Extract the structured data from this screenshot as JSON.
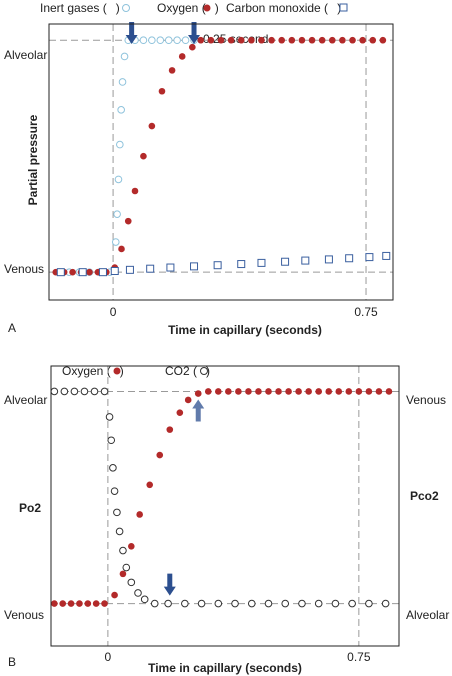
{
  "chart_data": [
    {
      "panel": "A",
      "type": "scatter",
      "xlabel": "Time in capillary (seconds)",
      "ylabel": "Partial pressure",
      "x_ticks": [
        "0",
        "0.75"
      ],
      "y_ticks": [
        "Venous",
        "Alveolar"
      ],
      "xlim": [
        -0.19,
        0.83
      ],
      "ylim": [
        -0.12,
        1.07
      ],
      "legend": [
        {
          "label": "Inert gases (",
          "suffix": ")",
          "marker": "open-circle"
        },
        {
          "label": "Oxygen (",
          "suffix": ")",
          "marker": "filled-circle"
        },
        {
          "label": "Carbon monoxide (",
          "suffix": ")",
          "marker": "open-square"
        }
      ],
      "annotation": "~0.25 second",
      "arrows_at_x": [
        0.055,
        0.24
      ],
      "series": [
        {
          "marker": "open-circle",
          "color": "#8fc3dc",
          "x": [
            -0.16,
            -0.13,
            -0.1,
            -0.07,
            -0.04,
            -0.01,
            0.008,
            0.012,
            0.016,
            0.02,
            0.024,
            0.028,
            0.034,
            0.045,
            0.065,
            0.09,
            0.115,
            0.14,
            0.165,
            0.19,
            0.215,
            0.24
          ],
          "y": [
            0,
            0,
            0,
            0,
            0,
            0,
            0.13,
            0.25,
            0.4,
            0.55,
            0.7,
            0.82,
            0.93,
            1,
            1,
            1,
            1,
            1,
            1,
            1,
            1,
            1
          ]
        },
        {
          "marker": "filled-circle",
          "color": "#b32a2a",
          "x": [
            -0.17,
            -0.145,
            -0.12,
            -0.095,
            -0.07,
            -0.045,
            -0.02,
            0.005,
            0.025,
            0.045,
            0.065,
            0.09,
            0.115,
            0.145,
            0.175,
            0.205,
            0.235,
            0.26,
            0.29,
            0.32,
            0.35,
            0.38,
            0.41,
            0.44,
            0.47,
            0.5,
            0.53,
            0.56,
            0.59,
            0.62,
            0.65,
            0.68,
            0.71,
            0.74,
            0.77,
            0.8
          ],
          "y": [
            0,
            0,
            0,
            0,
            0,
            0,
            0,
            0.02,
            0.1,
            0.22,
            0.35,
            0.5,
            0.63,
            0.78,
            0.87,
            0.93,
            0.97,
            1,
            1,
            1,
            1,
            1,
            1,
            1,
            1,
            1,
            1,
            1,
            1,
            1,
            1,
            1,
            1,
            1,
            1,
            1
          ]
        },
        {
          "marker": "open-square",
          "color": "#3a5f9f",
          "x": [
            -0.155,
            -0.09,
            -0.03,
            0.005,
            0.05,
            0.11,
            0.17,
            0.24,
            0.31,
            0.38,
            0.44,
            0.51,
            0.57,
            0.64,
            0.7,
            0.76,
            0.81
          ],
          "y": [
            0,
            0,
            0,
            0.005,
            0.01,
            0.015,
            0.02,
            0.025,
            0.03,
            0.035,
            0.04,
            0.045,
            0.05,
            0.055,
            0.06,
            0.065,
            0.07
          ]
        }
      ]
    },
    {
      "panel": "B",
      "type": "scatter",
      "xlabel": "Time in capillary (seconds)",
      "ylabel": "Po2",
      "ylabel_right": "Pco2",
      "x_ticks": [
        "0",
        "0.75"
      ],
      "y_ticks": [
        "Venous",
        "Alveolar"
      ],
      "y_ticks_right": [
        "Alveolar",
        "Venous"
      ],
      "xlim": [
        -0.17,
        0.87
      ],
      "ylim": [
        -0.2,
        1.12
      ],
      "legend": [
        {
          "label": "Oxygen (",
          "suffix": ")",
          "marker": "filled-circle"
        },
        {
          "label": "CO2 (",
          "suffix": ")",
          "marker": "open-circle"
        }
      ],
      "arrows_at_x": [
        0.185,
        0.27
      ],
      "series": [
        {
          "marker": "filled-circle",
          "color": "#b32a2a",
          "x": [
            -0.16,
            -0.135,
            -0.11,
            -0.085,
            -0.06,
            -0.035,
            -0.01,
            0.02,
            0.045,
            0.07,
            0.095,
            0.125,
            0.155,
            0.185,
            0.215,
            0.24,
            0.27,
            0.3,
            0.33,
            0.36,
            0.39,
            0.42,
            0.45,
            0.48,
            0.51,
            0.54,
            0.57,
            0.6,
            0.63,
            0.66,
            0.69,
            0.72,
            0.75,
            0.78,
            0.81,
            0.84
          ],
          "y": [
            0,
            0,
            0,
            0,
            0,
            0,
            0,
            0.04,
            0.14,
            0.27,
            0.42,
            0.56,
            0.7,
            0.82,
            0.9,
            0.96,
            0.99,
            1,
            1,
            1,
            1,
            1,
            1,
            1,
            1,
            1,
            1,
            1,
            1,
            1,
            1,
            1,
            1,
            1,
            1,
            1
          ]
        },
        {
          "marker": "open-circle",
          "color": "#333333",
          "x": [
            -0.16,
            -0.13,
            -0.1,
            -0.07,
            -0.04,
            -0.01,
            0.005,
            0.01,
            0.015,
            0.02,
            0.027,
            0.035,
            0.045,
            0.055,
            0.07,
            0.09,
            0.11,
            0.14,
            0.18,
            0.23,
            0.28,
            0.33,
            0.38,
            0.43,
            0.48,
            0.53,
            0.58,
            0.63,
            0.68,
            0.73,
            0.78,
            0.83
          ],
          "y": [
            1,
            1,
            1,
            1,
            1,
            1,
            0.88,
            0.77,
            0.64,
            0.53,
            0.43,
            0.34,
            0.25,
            0.17,
            0.1,
            0.05,
            0.02,
            0,
            0,
            0,
            0,
            0,
            0,
            0,
            0,
            0,
            0,
            0,
            0,
            0,
            0,
            0
          ]
        }
      ]
    }
  ]
}
